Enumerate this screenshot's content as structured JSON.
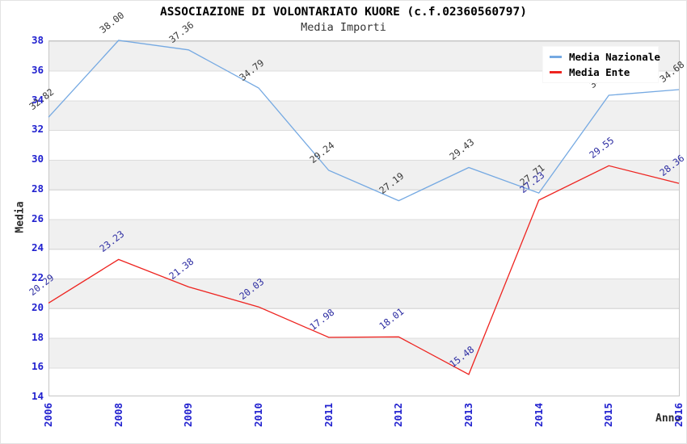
{
  "header": {
    "title": "ASSOCIAZIONE DI VOLONTARIATO KUORE (c.f.02360560797)",
    "subtitle": "Media Importi"
  },
  "axes": {
    "y_title": "Media",
    "x_title": "Anno"
  },
  "colors": {
    "tick_label": "#2121cf",
    "band_gray": "#f0f0f0",
    "grid_line": "#dcdcdc",
    "plot_border": "#c6c6c6",
    "nazionale_line": "#75a9e2",
    "ente_line": "#ee2420",
    "nazionale_point_label": "#3a3a3a",
    "ente_point_label": "#2d2da2"
  },
  "chart_data": {
    "type": "line",
    "title": "ASSOCIAZIONE DI VOLONTARIATO KUORE (c.f.02360560797)",
    "subtitle": "Media Importi",
    "xlabel": "Anno",
    "ylabel": "Media",
    "ylim": [
      14,
      38
    ],
    "y_ticks": [
      38,
      36,
      34,
      32,
      30,
      28,
      26,
      24,
      22,
      20,
      18,
      16,
      14
    ],
    "grid": "horizontal-bands-every-2-units",
    "legend_position": "top-right",
    "categories": [
      "2006",
      "2008",
      "2009",
      "2010",
      "2011",
      "2012",
      "2013",
      "2014",
      "2015",
      "2016"
    ],
    "series": [
      {
        "name": "Media Nazionale",
        "color": "#75a9e2",
        "label_color": "#3a3a3a",
        "values": [
          32.82,
          38.0,
          37.36,
          34.79,
          29.24,
          27.19,
          29.43,
          27.71,
          34.3,
          34.68
        ]
      },
      {
        "name": "Media Ente",
        "color": "#ee2420",
        "label_color": "#2d2da2",
        "values": [
          20.29,
          23.23,
          21.38,
          20.03,
          17.98,
          18.01,
          15.48,
          27.23,
          29.55,
          28.36
        ]
      }
    ]
  }
}
